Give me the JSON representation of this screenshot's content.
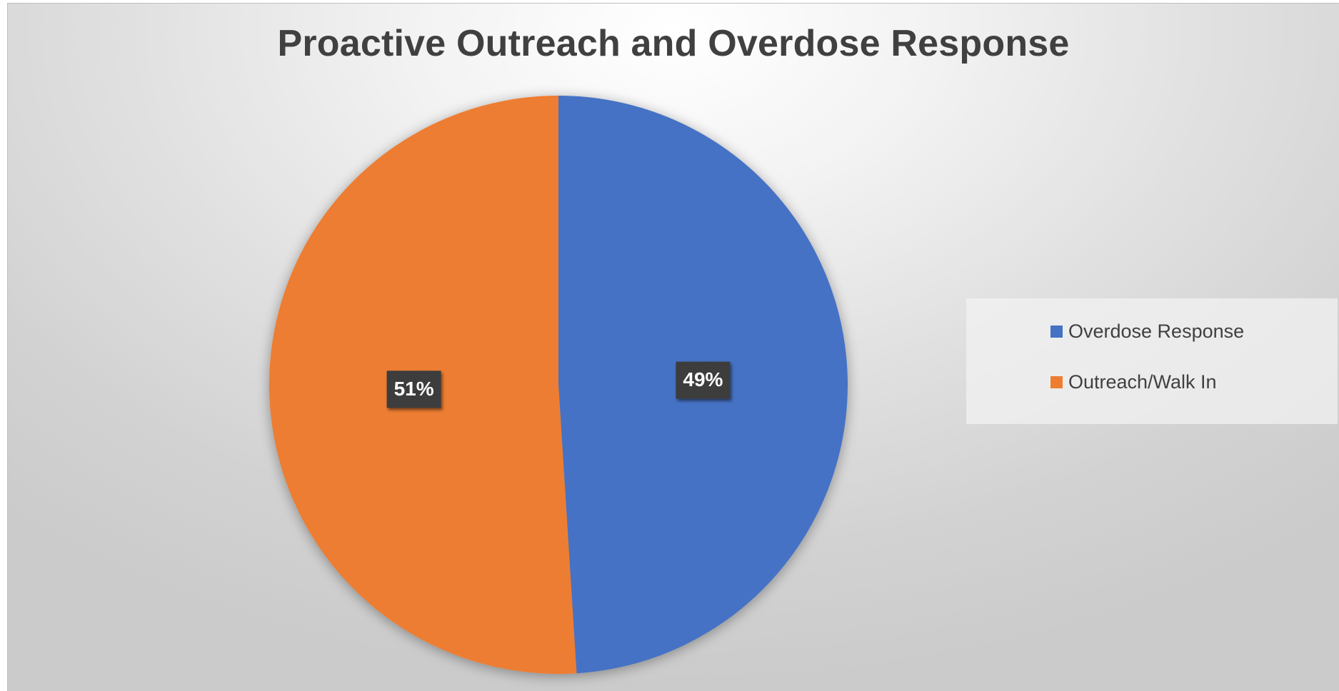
{
  "chart_data": {
    "type": "pie",
    "title": "Proactive Outreach and Overdose Response",
    "categories": [
      "Overdose Response",
      "Outreach/Walk In"
    ],
    "values": [
      49,
      51
    ],
    "data_labels": [
      "49%",
      "51%"
    ],
    "colors": [
      "#4472C4",
      "#ED7D31"
    ],
    "start_angle_deg": 0,
    "direction": "clockwise",
    "legend": {
      "position": "right",
      "items": [
        {
          "label": "Overdose Response",
          "color": "#4472C4"
        },
        {
          "label": "Outreach/Walk In",
          "color": "#ED7D31"
        }
      ]
    }
  }
}
